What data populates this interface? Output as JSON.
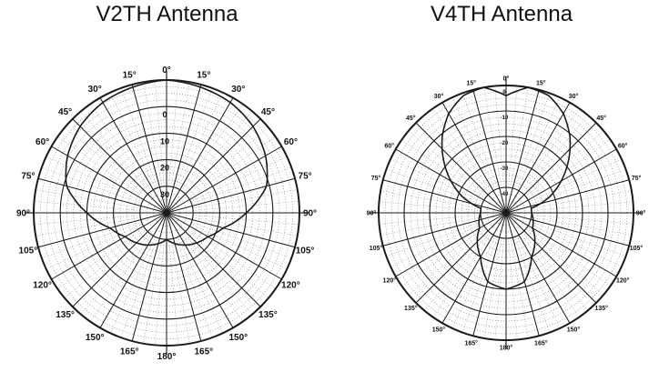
{
  "diagrams": [
    {
      "title": "V2TH Antenna",
      "angle_labels": [
        "0°",
        "15°",
        "30°",
        "45°",
        "60°",
        "75°",
        "90°",
        "105°",
        "120°",
        "135°",
        "150°",
        "165°",
        "180°",
        "165°",
        "150°",
        "135°",
        "120°",
        "105°",
        "90°",
        "75°",
        "60°",
        "45°",
        "30°",
        "15°"
      ],
      "ring_labels": [
        "0",
        "10",
        "20",
        "30"
      ],
      "pattern": {
        "type": "cardioid-like",
        "angles_deg": [
          0,
          15,
          30,
          45,
          60,
          75,
          90,
          105,
          120,
          135,
          150,
          165,
          180
        ],
        "gain_db": [
          0,
          -1,
          -2,
          -4,
          -7,
          -11,
          -20,
          -28,
          -32,
          -34,
          -36,
          -38,
          -40
        ]
      },
      "colors": {
        "ink": "#1a1a1a",
        "grid": "#777777"
      }
    },
    {
      "title": "V4TH Antenna",
      "angle_labels": [
        "0°",
        "15°",
        "30°",
        "45°",
        "60°",
        "75°",
        "90°",
        "105°",
        "120°",
        "135°",
        "150°",
        "165°",
        "180°",
        "165°",
        "150°",
        "135°",
        "120°",
        "105°",
        "90°",
        "75°",
        "60°",
        "45°",
        "30°",
        "15°"
      ],
      "ring_labels": [
        "0",
        "-10",
        "-20",
        "-30",
        "-40"
      ],
      "pattern": {
        "type": "two-lobe",
        "angles_deg": [
          0,
          10,
          20,
          30,
          40,
          50,
          60,
          70,
          80,
          90,
          120,
          150,
          165,
          180
        ],
        "gain_db": [
          -4,
          0,
          -1,
          -5,
          -11,
          -18,
          -25,
          -32,
          -40,
          -40,
          -38,
          -30,
          -22,
          -20
        ]
      },
      "colors": {
        "ink": "#1a1a1a",
        "grid": "#777777"
      }
    }
  ]
}
